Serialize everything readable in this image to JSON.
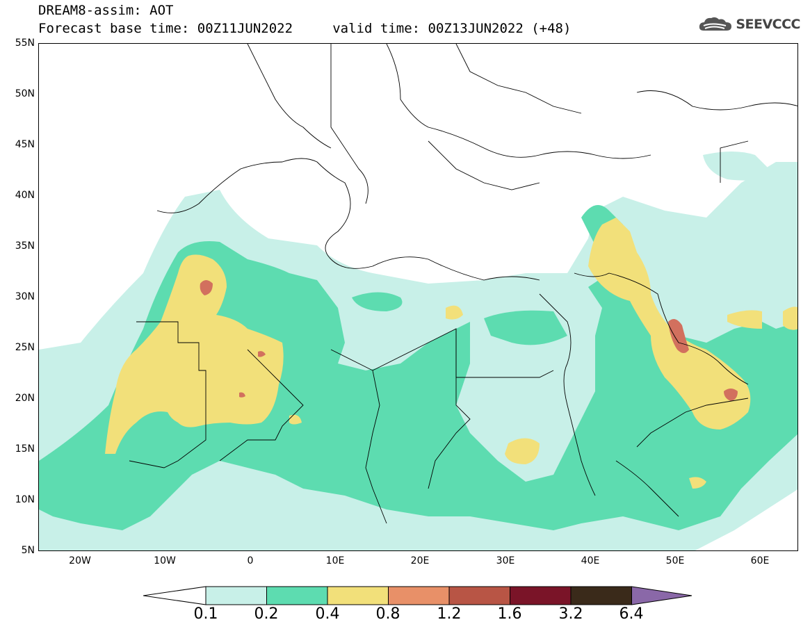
{
  "header": {
    "title": "DREAM8-assim: AOT",
    "subtitle": "Forecast base time: 00Z11JUN2022     valid time: 00Z13JUN2022 (+48)",
    "logo_text": "SEEVCCC"
  },
  "axes": {
    "lat_labels": [
      "55N",
      "50N",
      "45N",
      "40N",
      "35N",
      "30N",
      "25N",
      "20N",
      "15N",
      "10N",
      "5N"
    ],
    "lon_labels": [
      "20W",
      "10W",
      "0",
      "10E",
      "20E",
      "30E",
      "40E",
      "50E",
      "60E"
    ]
  },
  "colorbar": {
    "levels": [
      "0.1",
      "0.2",
      "0.4",
      "0.8",
      "1.2",
      "1.6",
      "3.2",
      "6.4"
    ],
    "colors": [
      "#c8f0e8",
      "#5ddcb0",
      "#f2e07a",
      "#e89068",
      "#b85545",
      "#7a1428",
      "#3a2a1a",
      "#8a68a8"
    ]
  },
  "colors": {
    "c1": "#c8f0e8",
    "c2": "#5ddcb0",
    "c3": "#f2e07a",
    "c4": "#e89068",
    "c5": "#d2705e"
  }
}
